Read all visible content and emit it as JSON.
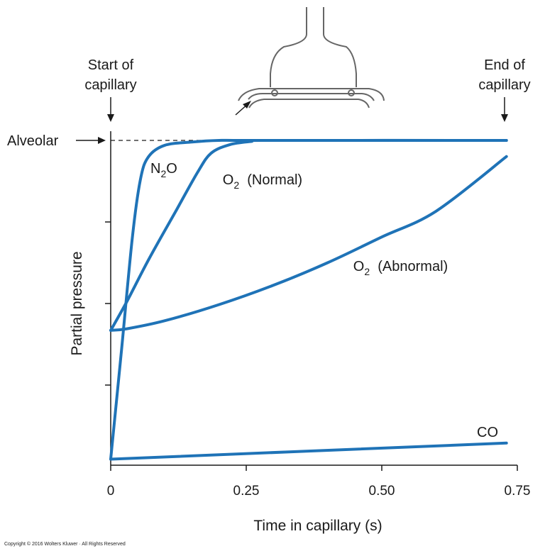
{
  "chart_data": {
    "type": "line",
    "xlabel": "Time in capillary (s)",
    "ylabel": "Partial pressure",
    "xlim": [
      0,
      0.75
    ],
    "x_ticks": [
      "0",
      "0.25",
      "0.50",
      "0.75"
    ],
    "y_level_alveolar": 100,
    "alveolar_label": "Alveolar",
    "start_label": [
      "Start of",
      "capillary"
    ],
    "end_label": [
      "End of",
      "capillary"
    ],
    "series": [
      {
        "key": "n2o",
        "label_main": "N",
        "label_sub": "2",
        "label_rest": "O",
        "x": [
          0,
          0.02,
          0.04,
          0.055,
          0.07,
          0.1,
          0.15,
          0.2,
          0.28,
          0.73
        ],
        "y": [
          1,
          35,
          70,
          88,
          95,
          98.5,
          99.5,
          100,
          100,
          100
        ]
      },
      {
        "key": "o2_normal",
        "label_main": "O",
        "label_sub": "2",
        "label_rest": "  (Normal)",
        "x": [
          0,
          0.03,
          0.07,
          0.12,
          0.16,
          0.185,
          0.22,
          0.26,
          0.28,
          0.73
        ],
        "y": [
          41,
          50,
          63,
          78,
          90,
          96,
          98.7,
          99.7,
          100,
          100
        ]
      },
      {
        "key": "o2_abnormal",
        "label_main": "O",
        "label_sub": "2",
        "label_rest": "  (Abnormal)",
        "x": [
          0,
          0.03,
          0.1,
          0.2,
          0.3,
          0.4,
          0.5,
          0.6,
          0.73
        ],
        "y": [
          41,
          41.5,
          44,
          49,
          55,
          62,
          70,
          78,
          95
        ]
      },
      {
        "key": "co",
        "label_main": "CO",
        "label_sub": "",
        "label_rest": "",
        "x": [
          0,
          0.73
        ],
        "y": [
          1,
          6
        ]
      }
    ]
  },
  "diagram": {
    "arrow_label": ""
  },
  "copyright": "Copyright © 2016 Wolters Kluwer · All Rights Reserved",
  "colors": {
    "curve": "#1f73b7",
    "axis": "#1a1a1a",
    "diagram": "#666666"
  }
}
